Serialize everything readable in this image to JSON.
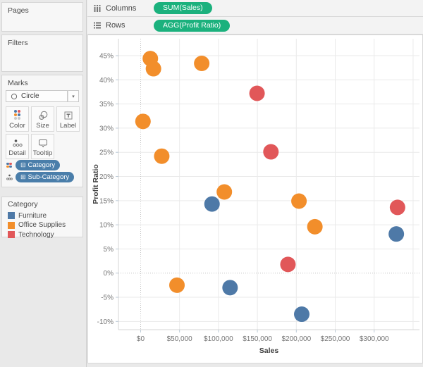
{
  "colors": {
    "accent_green": "#1bb17d",
    "pill_blue": "#4a7eaa",
    "color_icon_dots": [
      "#4e79a7",
      "#e15759",
      "#f28e2b",
      "#4e79a7",
      "#c9c9c9",
      "#c9c9c9"
    ],
    "pill_prefix_dots": [
      "#4e79a7",
      "#e15759",
      "#f28e2b",
      "#4e79a7"
    ]
  },
  "shelves": {
    "columns_label": "Columns",
    "columns_pill": "SUM(Sales)",
    "rows_label": "Rows",
    "rows_pill": "AGG(Profit Ratio)"
  },
  "sidebar": {
    "pages_title": "Pages",
    "filters_title": "Filters",
    "marks": {
      "title": "Marks",
      "mark_type": "Circle",
      "dropdown_caret": "▾",
      "buttons": [
        {
          "label": "Color"
        },
        {
          "label": "Size"
        },
        {
          "label": "Label"
        },
        {
          "label": "Detail"
        },
        {
          "label": "Tooltip"
        }
      ],
      "pills": [
        {
          "glyph": "⊟",
          "label": "Category"
        },
        {
          "glyph": "⊞",
          "label": "Sub-Category"
        }
      ]
    },
    "legend": {
      "title": "Category",
      "items": [
        {
          "label": "Furniture",
          "color": "#4e79a7"
        },
        {
          "label": "Office Supplies",
          "color": "#f28e2b"
        },
        {
          "label": "Technology",
          "color": "#e15759"
        }
      ]
    }
  },
  "chart_data": {
    "type": "scatter",
    "title": "",
    "xlabel": "Sales",
    "ylabel": "Profit Ratio",
    "x_unit": "$",
    "y_unit": "%",
    "xlim": [
      -28500,
      358200
    ],
    "ylim": [
      -11.7,
      48.5
    ],
    "grid": true,
    "x_grid": [
      0,
      50000,
      100000,
      150000,
      200000,
      250000,
      300000,
      350000
    ],
    "y_grid": [
      -10,
      -5,
      0,
      5,
      10,
      15,
      20,
      25,
      30,
      35,
      40,
      45
    ],
    "x_ticks": [
      {
        "v": 0,
        "label": "$0"
      },
      {
        "v": 50000,
        "label": "$50,000"
      },
      {
        "v": 100000,
        "label": "$100,000"
      },
      {
        "v": 150000,
        "label": "$150,000"
      },
      {
        "v": 200000,
        "label": "$200,000"
      },
      {
        "v": 250000,
        "label": "$250,000"
      },
      {
        "v": 300000,
        "label": "$300,000"
      }
    ],
    "y_ticks": [
      {
        "v": 45,
        "label": "45%"
      },
      {
        "v": 40,
        "label": "40%"
      },
      {
        "v": 35,
        "label": "35%"
      },
      {
        "v": 30,
        "label": "30%"
      },
      {
        "v": 25,
        "label": "25%"
      },
      {
        "v": 20,
        "label": "20%"
      },
      {
        "v": 15,
        "label": "15%"
      },
      {
        "v": 10,
        "label": "10%"
      },
      {
        "v": 5,
        "label": "5%"
      },
      {
        "v": 0,
        "label": "0%"
      },
      {
        "v": -5,
        "label": "-5%"
      },
      {
        "v": -10,
        "label": "-10%"
      }
    ],
    "zero_line_x": 0,
    "zero_line_y": 0,
    "marker_radius": 11,
    "legend_position": "left",
    "series": [
      {
        "name": "Furniture",
        "color": "#4e79a7",
        "points": [
          [
            91705,
            14.3
          ],
          [
            114880,
            -3.0
          ],
          [
            206966,
            -8.5
          ],
          [
            328449,
            8.1
          ]
        ]
      },
      {
        "name": "Office Supplies",
        "color": "#f28e2b",
        "points": [
          [
            3024,
            31.4
          ],
          [
            12486,
            44.4
          ],
          [
            16476,
            42.3
          ],
          [
            27119,
            24.2
          ],
          [
            46674,
            -2.5
          ],
          [
            78479,
            43.4
          ],
          [
            107532,
            16.8
          ],
          [
            203413,
            14.9
          ],
          [
            223844,
            9.6
          ]
        ]
      },
      {
        "name": "Technology",
        "color": "#e15759",
        "points": [
          [
            149528,
            37.2
          ],
          [
            167380,
            25.1
          ],
          [
            189239,
            1.8
          ],
          [
            330007,
            13.6
          ]
        ]
      }
    ]
  }
}
